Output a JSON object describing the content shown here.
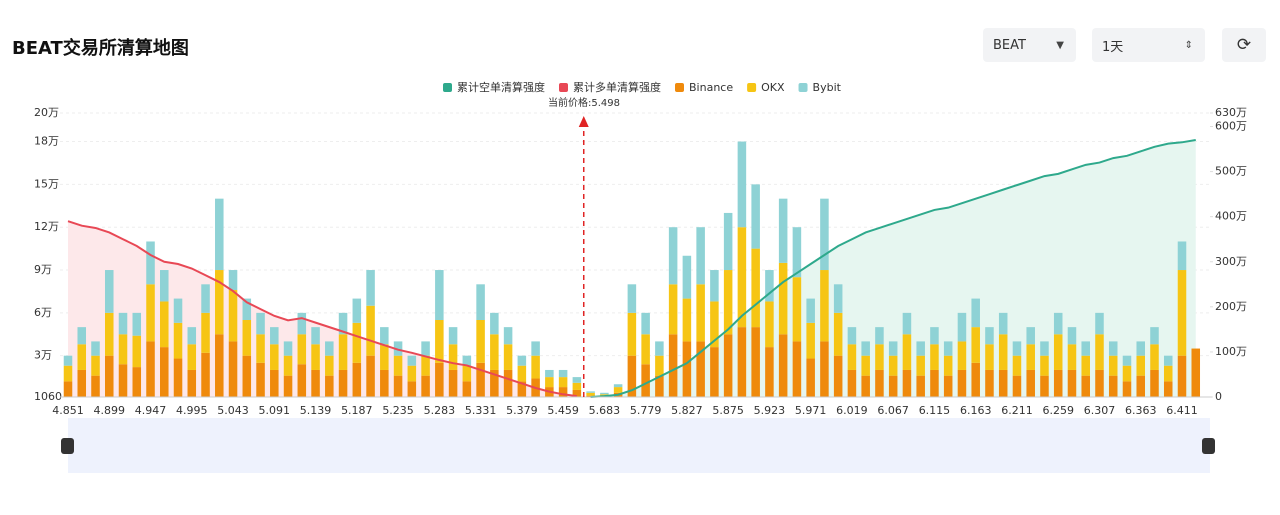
{
  "header": {
    "title": "BEAT交易所清算地图",
    "symbol_select": "BEAT",
    "period_select": "1天"
  },
  "chart_data": {
    "type": "bar",
    "stacked": true,
    "annotation": "当前价格:5.498",
    "categories": [
      "4.851",
      null,
      null,
      "4.899",
      null,
      null,
      "4.947",
      null,
      null,
      "4.995",
      null,
      null,
      "5.043",
      null,
      null,
      "5.091",
      null,
      null,
      "5.139",
      null,
      null,
      "5.187",
      null,
      null,
      "5.235",
      null,
      null,
      "5.283",
      null,
      null,
      "5.331",
      null,
      null,
      "5.379",
      null,
      null,
      "5.459",
      null,
      null,
      "5.683",
      null,
      null,
      "5.779",
      null,
      null,
      "5.827",
      null,
      null,
      "5.875",
      null,
      null,
      "5.923",
      null,
      null,
      "5.971",
      null,
      null,
      "6.019",
      null,
      null,
      "6.067",
      null,
      null,
      "6.115",
      null,
      null,
      "6.163",
      null,
      null,
      "6.211",
      null,
      null,
      "6.259",
      null,
      null,
      "6.307",
      null,
      null,
      "6.363",
      null,
      null,
      "6.411",
      null
    ],
    "series": [
      {
        "name": "累计空单清算强度",
        "type": "line",
        "axis": "y2",
        "color": "#2ea98c",
        "fill": "#e6f6f0",
        "values": [
          null,
          null,
          null,
          null,
          null,
          null,
          null,
          null,
          null,
          null,
          null,
          null,
          null,
          null,
          null,
          null,
          null,
          null,
          null,
          null,
          null,
          null,
          null,
          null,
          null,
          null,
          null,
          null,
          null,
          null,
          null,
          null,
          null,
          null,
          null,
          null,
          null,
          null,
          0,
          20000,
          50000,
          150000,
          300000,
          450000,
          600000,
          750000,
          1000000,
          1250000,
          1500000,
          1800000,
          2050000,
          2300000,
          2550000,
          2750000,
          2950000,
          3150000,
          3350000,
          3500000,
          3650000,
          3750000,
          3850000,
          3950000,
          4050000,
          4150000,
          4200000,
          4300000,
          4400000,
          4500000,
          4600000,
          4700000,
          4800000,
          4900000,
          4950000,
          5050000,
          5150000,
          5200000,
          5300000,
          5350000,
          5450000,
          5550000,
          5620000,
          5650000,
          5700000
        ]
      },
      {
        "name": "累计多单清算强度",
        "type": "line",
        "axis": "y2",
        "color": "#e84855",
        "fill": "#fde8ea",
        "values": [
          3900000,
          3800000,
          3750000,
          3650000,
          3500000,
          3350000,
          3150000,
          3000000,
          2950000,
          2850000,
          2700000,
          2550000,
          2350000,
          2100000,
          1950000,
          1800000,
          1700000,
          1750000,
          1650000,
          1550000,
          1450000,
          1350000,
          1250000,
          1150000,
          1050000,
          980000,
          900000,
          820000,
          750000,
          700000,
          600000,
          500000,
          400000,
          300000,
          200000,
          120000,
          60000,
          20000,
          null,
          null,
          null,
          null,
          null,
          null,
          null,
          null,
          null,
          null,
          null,
          null,
          null,
          null,
          null,
          null,
          null,
          null,
          null,
          null,
          null,
          null,
          null,
          null,
          null,
          null,
          null,
          null,
          null,
          null,
          null,
          null,
          null,
          null,
          null,
          null,
          null,
          null,
          null,
          null,
          null,
          null,
          null,
          null,
          null
        ]
      },
      {
        "name": "Binance",
        "type": "bar",
        "color": "#ef8a0c",
        "values": [
          12000,
          20000,
          16000,
          30000,
          24000,
          22000,
          40000,
          36000,
          28000,
          20000,
          32000,
          45000,
          40000,
          30000,
          25000,
          20000,
          16000,
          24000,
          20000,
          16000,
          20000,
          25000,
          30000,
          20000,
          16000,
          12000,
          16000,
          25000,
          20000,
          12000,
          25000,
          20000,
          20000,
          12000,
          14000,
          8000,
          8000,
          6000,
          2000,
          2000,
          4000,
          30000,
          24000,
          16000,
          45000,
          40000,
          40000,
          36000,
          45000,
          50000,
          50000,
          36000,
          45000,
          40000,
          28000,
          40000,
          30000,
          20000,
          16000,
          20000,
          16000,
          20000,
          16000,
          20000,
          16000,
          20000,
          25000,
          20000,
          20000,
          16000,
          20000,
          16000,
          20000,
          20000,
          16000,
          20000,
          16000,
          12000,
          16000,
          20000,
          12000,
          30000,
          35000
        ]
      },
      {
        "name": "OKX",
        "type": "bar",
        "color": "#f6c514",
        "values": [
          11000,
          18000,
          14000,
          30000,
          21000,
          22000,
          40000,
          32000,
          25000,
          18000,
          28000,
          45000,
          36000,
          25000,
          20000,
          18000,
          14000,
          21000,
          18000,
          14000,
          25000,
          28000,
          35000,
          18000,
          14000,
          11000,
          14000,
          30000,
          18000,
          11000,
          30000,
          25000,
          18000,
          11000,
          16000,
          7000,
          7000,
          5000,
          2000,
          1000,
          4000,
          30000,
          21000,
          14000,
          35000,
          30000,
          40000,
          32000,
          45000,
          70000,
          55000,
          32000,
          50000,
          45000,
          25000,
          50000,
          30000,
          18000,
          14000,
          18000,
          14000,
          25000,
          14000,
          18000,
          14000,
          20000,
          25000,
          18000,
          25000,
          14000,
          18000,
          14000,
          25000,
          18000,
          14000,
          25000,
          14000,
          11000,
          14000,
          18000,
          11000,
          60000,
          0
        ]
      },
      {
        "name": "Bybit",
        "type": "bar",
        "color": "#8ed2d5",
        "values": [
          7000,
          12000,
          10000,
          30000,
          15000,
          16000,
          30000,
          22000,
          17000,
          12000,
          20000,
          50000,
          14000,
          15000,
          15000,
          12000,
          10000,
          15000,
          12000,
          10000,
          15000,
          17000,
          25000,
          12000,
          10000,
          7000,
          10000,
          35000,
          12000,
          7000,
          25000,
          15000,
          12000,
          7000,
          10000,
          5000,
          5000,
          4000,
          1000,
          1000,
          2000,
          20000,
          15000,
          10000,
          40000,
          30000,
          40000,
          22000,
          40000,
          60000,
          45000,
          22000,
          45000,
          35000,
          17000,
          50000,
          20000,
          12000,
          10000,
          12000,
          10000,
          15000,
          10000,
          12000,
          10000,
          20000,
          20000,
          12000,
          15000,
          10000,
          12000,
          10000,
          15000,
          12000,
          10000,
          15000,
          10000,
          7000,
          10000,
          12000,
          7000,
          20000,
          0
        ]
      }
    ],
    "ylim": [
      1060,
      200000
    ],
    "yticks": [
      1060,
      {
        "value": 30000,
        "label": "3万"
      },
      {
        "value": 60000,
        "label": "6万"
      },
      {
        "value": 90000,
        "label": "9万"
      },
      {
        "value": 120000,
        "label": "12万"
      },
      {
        "value": 150000,
        "label": "15万"
      },
      {
        "value": 180000,
        "label": "18万"
      },
      {
        "value": 200000,
        "label": "20万"
      }
    ],
    "y2lim": [
      0,
      6300000
    ],
    "y2ticks": [
      0,
      {
        "value": 1000000,
        "label": "100万"
      },
      {
        "value": 2000000,
        "label": "200万"
      },
      {
        "value": 3000000,
        "label": "300万"
      },
      {
        "value": 4000000,
        "label": "400万"
      },
      {
        "value": 5000000,
        "label": "500万"
      },
      {
        "value": 6000000,
        "label": "600万"
      },
      {
        "value": 6300000,
        "label": "630万"
      }
    ],
    "grid": true,
    "legend": "top"
  }
}
